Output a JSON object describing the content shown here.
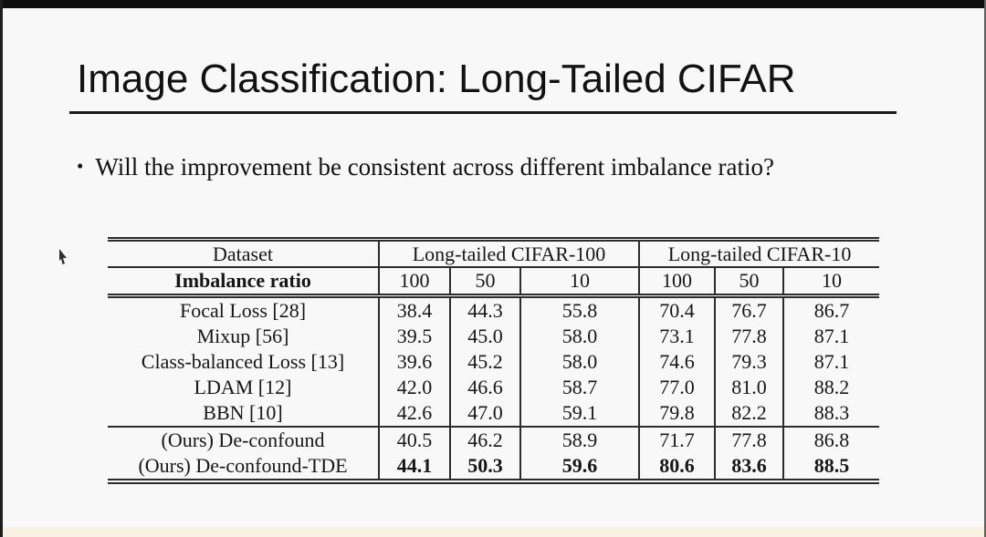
{
  "slide": {
    "title": "Image Classification: Long-Tailed CIFAR",
    "bullet_marker": "•",
    "bullet_text": "Will the improvement be consistent across different imbalance ratio?"
  },
  "results_table": {
    "dataset_header": "Dataset",
    "group_headers": [
      "Long-tailed CIFAR-100",
      "Long-tailed CIFAR-10"
    ],
    "imbalance_header": "Imbalance ratio",
    "imbalance_ratios": [
      "100",
      "50",
      "10",
      "100",
      "50",
      "10"
    ],
    "baseline_rows": [
      {
        "method": "Focal Loss [28]",
        "values": [
          "38.4",
          "44.3",
          "55.8",
          "70.4",
          "76.7",
          "86.7"
        ],
        "bold_values": false
      },
      {
        "method": "Mixup [56]",
        "values": [
          "39.5",
          "45.0",
          "58.0",
          "73.1",
          "77.8",
          "87.1"
        ],
        "bold_values": false
      },
      {
        "method": "Class-balanced Loss [13]",
        "values": [
          "39.6",
          "45.2",
          "58.0",
          "74.6",
          "79.3",
          "87.1"
        ],
        "bold_values": false
      },
      {
        "method": "LDAM [12]",
        "values": [
          "42.0",
          "46.6",
          "58.7",
          "77.0",
          "81.0",
          "88.2"
        ],
        "bold_values": false
      },
      {
        "method": "BBN [10]",
        "values": [
          "42.6",
          "47.0",
          "59.1",
          "79.8",
          "82.2",
          "88.3"
        ],
        "bold_values": false
      }
    ],
    "ours_rows": [
      {
        "method": "(Ours) De-confound",
        "values": [
          "40.5",
          "46.2",
          "58.9",
          "71.7",
          "77.8",
          "86.8"
        ],
        "bold_values": false
      },
      {
        "method": "(Ours) De-confound-TDE",
        "values": [
          "44.1",
          "50.3",
          "59.6",
          "80.6",
          "83.6",
          "88.5"
        ],
        "bold_values": true
      }
    ]
  },
  "chart_data": {
    "type": "table",
    "title": "Image Classification: Long-Tailed CIFAR",
    "columns": [
      "Dataset",
      "Long-tailed CIFAR-100 / 100",
      "Long-tailed CIFAR-100 / 50",
      "Long-tailed CIFAR-100 / 10",
      "Long-tailed CIFAR-10 / 100",
      "Long-tailed CIFAR-10 / 50",
      "Long-tailed CIFAR-10 / 10"
    ],
    "rows": [
      [
        "Focal Loss [28]",
        38.4,
        44.3,
        55.8,
        70.4,
        76.7,
        86.7
      ],
      [
        "Mixup [56]",
        39.5,
        45.0,
        58.0,
        73.1,
        77.8,
        87.1
      ],
      [
        "Class-balanced Loss [13]",
        39.6,
        45.2,
        58.0,
        74.6,
        79.3,
        87.1
      ],
      [
        "LDAM [12]",
        42.0,
        46.6,
        58.7,
        77.0,
        81.0,
        88.2
      ],
      [
        "BBN [10]",
        42.6,
        47.0,
        59.1,
        79.8,
        82.2,
        88.3
      ],
      [
        "(Ours) De-confound",
        40.5,
        46.2,
        58.9,
        71.7,
        77.8,
        86.8
      ],
      [
        "(Ours) De-confound-TDE",
        44.1,
        50.3,
        59.6,
        80.6,
        83.6,
        88.5
      ]
    ]
  },
  "colors": {
    "slide_background": "#f8f8f8",
    "frame": "#0e0e0e",
    "bottom_strip": "#f9f1e1",
    "text": "#121212",
    "table_rule": "#2c2c2c"
  }
}
